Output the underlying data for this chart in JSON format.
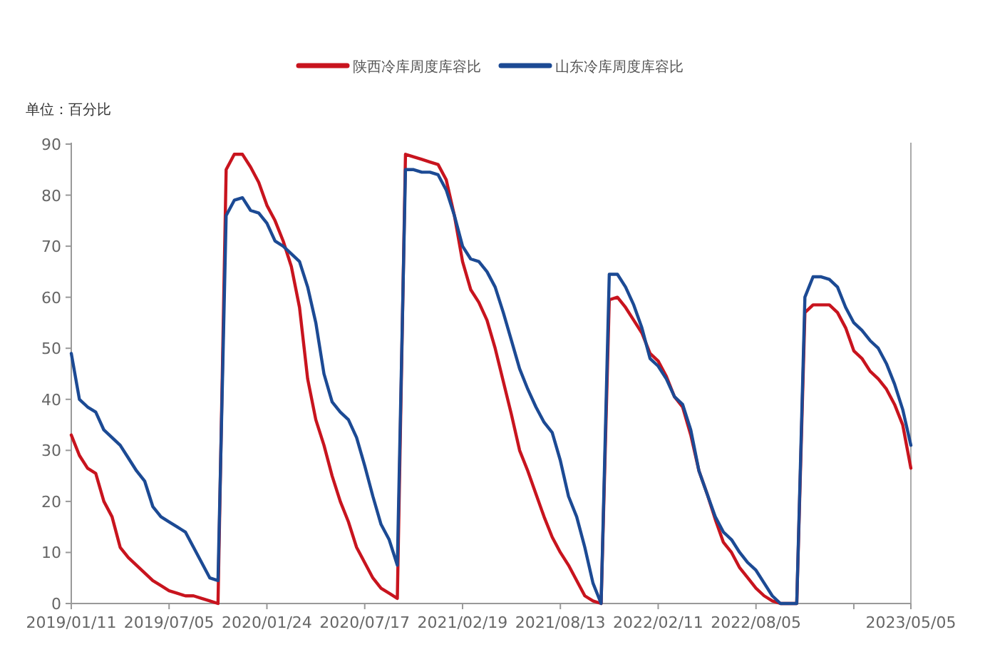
{
  "chart_data": {
    "type": "line",
    "ylabel": "单位：百分比",
    "legend": "top",
    "grid": false,
    "categories": [
      "2019/01/11",
      null,
      null,
      null,
      null,
      null,
      null,
      null,
      null,
      null,
      null,
      null,
      "2019/07/05",
      null,
      null,
      null,
      null,
      null,
      null,
      null,
      null,
      null,
      null,
      null,
      "2020/01/24",
      null,
      null,
      null,
      null,
      null,
      null,
      null,
      null,
      null,
      null,
      null,
      "2020/07/17",
      null,
      null,
      null,
      null,
      null,
      null,
      null,
      null,
      null,
      null,
      null,
      "2021/02/19",
      null,
      null,
      null,
      null,
      null,
      null,
      null,
      null,
      null,
      null,
      null,
      "2021/08/13",
      null,
      null,
      null,
      null,
      null,
      null,
      null,
      null,
      null,
      null,
      null,
      "2022/02/11",
      null,
      null,
      null,
      null,
      null,
      null,
      null,
      null,
      null,
      null,
      null,
      "2022/08/05",
      null,
      null,
      null,
      null,
      null,
      null,
      null,
      null,
      null,
      null,
      null,
      null,
      null,
      null,
      null,
      null,
      null,
      null,
      "2023/05/05"
    ],
    "ylim": [
      0,
      90
    ],
    "yticks": [
      0,
      10,
      20,
      30,
      40,
      50,
      60,
      70,
      80,
      90
    ],
    "series": [
      {
        "name": "陕西冷库周度库容比",
        "color": "#c8141e",
        "values": [
          33,
          29,
          26.5,
          25.5,
          20,
          17,
          11,
          9,
          7.5,
          6,
          4.5,
          3.5,
          2.5,
          2,
          1.5,
          1.5,
          1,
          0.5,
          0,
          85,
          88,
          88,
          85.5,
          82.5,
          78,
          75,
          71,
          66,
          58,
          44,
          36,
          31,
          25,
          20,
          16,
          11,
          8,
          5,
          3,
          2,
          1,
          88,
          87.5,
          87,
          86.5,
          86,
          83,
          76,
          67,
          61.5,
          59,
          55.5,
          50,
          43.5,
          37,
          30,
          26,
          21.5,
          17,
          13,
          10,
          7.5,
          4.5,
          1.5,
          0.5,
          0,
          59.5,
          60,
          58,
          55.5,
          53,
          49,
          47.5,
          44.5,
          40.5,
          38.5,
          33,
          26,
          21.5,
          16.5,
          12,
          10,
          7,
          5,
          3,
          1.5,
          0.5,
          0,
          0,
          0,
          57,
          58.5,
          58.5,
          58.5,
          57,
          54,
          49.5,
          48,
          45.5,
          44,
          42,
          39,
          35,
          26.5
        ]
      },
      {
        "name": "山东冷库周度库容比",
        "color": "#1c4a94",
        "values": [
          49,
          40,
          38.5,
          37.5,
          34,
          32.5,
          31,
          28.5,
          26,
          24,
          19,
          17,
          16,
          15,
          14,
          11,
          8,
          5,
          4.5,
          76,
          79,
          79.5,
          77,
          76.5,
          74.5,
          71,
          70,
          68.5,
          67,
          62,
          55,
          45,
          39.5,
          37.5,
          36,
          32.5,
          27,
          21,
          15.5,
          12.5,
          7.5,
          85,
          85,
          84.5,
          84.5,
          84,
          81,
          76,
          70,
          67.5,
          67,
          65,
          62,
          57,
          51.5,
          46,
          42,
          38.5,
          35.5,
          33.5,
          28,
          21,
          17,
          11,
          4,
          0,
          64.5,
          64.5,
          62,
          58.5,
          54,
          48,
          46.5,
          44,
          40.5,
          39,
          34,
          26,
          21.5,
          17,
          14,
          12.5,
          10,
          8,
          6.5,
          4,
          1.5,
          0,
          0,
          0,
          60,
          64,
          64,
          63.5,
          62,
          58,
          55,
          53.5,
          51.5,
          50,
          47,
          43,
          38,
          31
        ]
      }
    ]
  }
}
